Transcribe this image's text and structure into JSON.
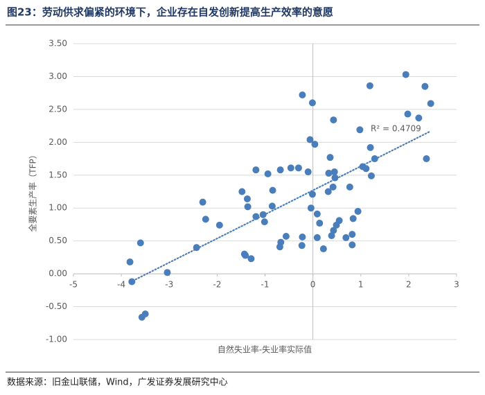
{
  "chart_data": {
    "type": "scatter",
    "title": "图23：劳动供求偏紧的环境下，企业存在自发创新提高生产效率的意愿",
    "x_label": "自然失业率-失业率实际值",
    "y_label": "全要素生产率（TFP）",
    "annotation": "R² = 0.4709",
    "source": "数据来源：旧金山联储，Wind，广发证券发展研究中心",
    "color": "#4a7ebb",
    "trendline": true,
    "x": [
      -3.82,
      -3.78,
      -3.6,
      -3.57,
      -3.5,
      -3.04,
      -2.43,
      -2.3,
      -2.24,
      -1.95,
      -1.48,
      -1.43,
      -1.41,
      -1.37,
      -1.36,
      -1.29,
      -1.19,
      -1.19,
      -1.04,
      -1.01,
      -0.94,
      -0.85,
      -0.84,
      -0.69,
      -0.68,
      -0.67,
      -0.56,
      -0.46,
      -0.3,
      -0.23,
      -0.22,
      -0.22,
      -0.1,
      -0.06,
      -0.04,
      -0.01,
      -0.01,
      0.04,
      0.09,
      0.09,
      0.14,
      0.22,
      0.32,
      0.33,
      0.36,
      0.39,
      0.42,
      0.43,
      0.46,
      0.45,
      0.43,
      0.49,
      0.55,
      0.69,
      0.77,
      0.82,
      0.82,
      0.84,
      0.94,
      0.98,
      1.04,
      1.11,
      1.19,
      1.2,
      1.22,
      1.29,
      1.94,
      1.98,
      2.21,
      2.34,
      2.37,
      2.46
    ],
    "values": [
      0.18,
      -0.12,
      0.47,
      -0.66,
      -0.61,
      0.02,
      0.4,
      1.09,
      0.83,
      0.74,
      1.25,
      0.3,
      0.28,
      1.14,
      1.02,
      0.23,
      1.58,
      0.87,
      0.9,
      0.79,
      1.52,
      1.03,
      1.27,
      0.41,
      1.58,
      0.48,
      0.57,
      1.61,
      1.61,
      0.43,
      0.56,
      2.72,
      1.55,
      2.04,
      1.0,
      2.6,
      1.21,
      1.97,
      0.55,
      0.91,
      0.77,
      0.38,
      1.25,
      1.53,
      1.77,
      0.58,
      1.32,
      0.66,
      1.46,
      1.55,
      2.34,
      0.74,
      0.81,
      0.55,
      1.32,
      0.6,
      0.44,
      0.84,
      0.95,
      2.19,
      1.63,
      1.6,
      2.86,
      1.92,
      1.49,
      1.75,
      3.03,
      2.43,
      2.37,
      2.85,
      1.75,
      2.59
    ],
    "xlim": [
      -5,
      3
    ],
    "xticks": [
      -5,
      -4,
      -3,
      -2,
      -1,
      0,
      1,
      2,
      3
    ],
    "ylim": [
      -1,
      3.5
    ],
    "yticks": [
      {
        "value": -1,
        "label": "-1.00"
      },
      {
        "value": -0.5,
        "label": "-0.50"
      },
      {
        "value": 0,
        "label": "0.00"
      },
      {
        "value": 0.5,
        "label": "0.50"
      },
      {
        "value": 1,
        "label": "1.00"
      },
      {
        "value": 1.5,
        "label": "1.50"
      },
      {
        "value": 2,
        "label": "2.00"
      },
      {
        "value": 2.5,
        "label": "2.50"
      },
      {
        "value": 3,
        "label": "3.00"
      },
      {
        "value": 3.5,
        "label": "3.50"
      }
    ],
    "grid": true
  }
}
